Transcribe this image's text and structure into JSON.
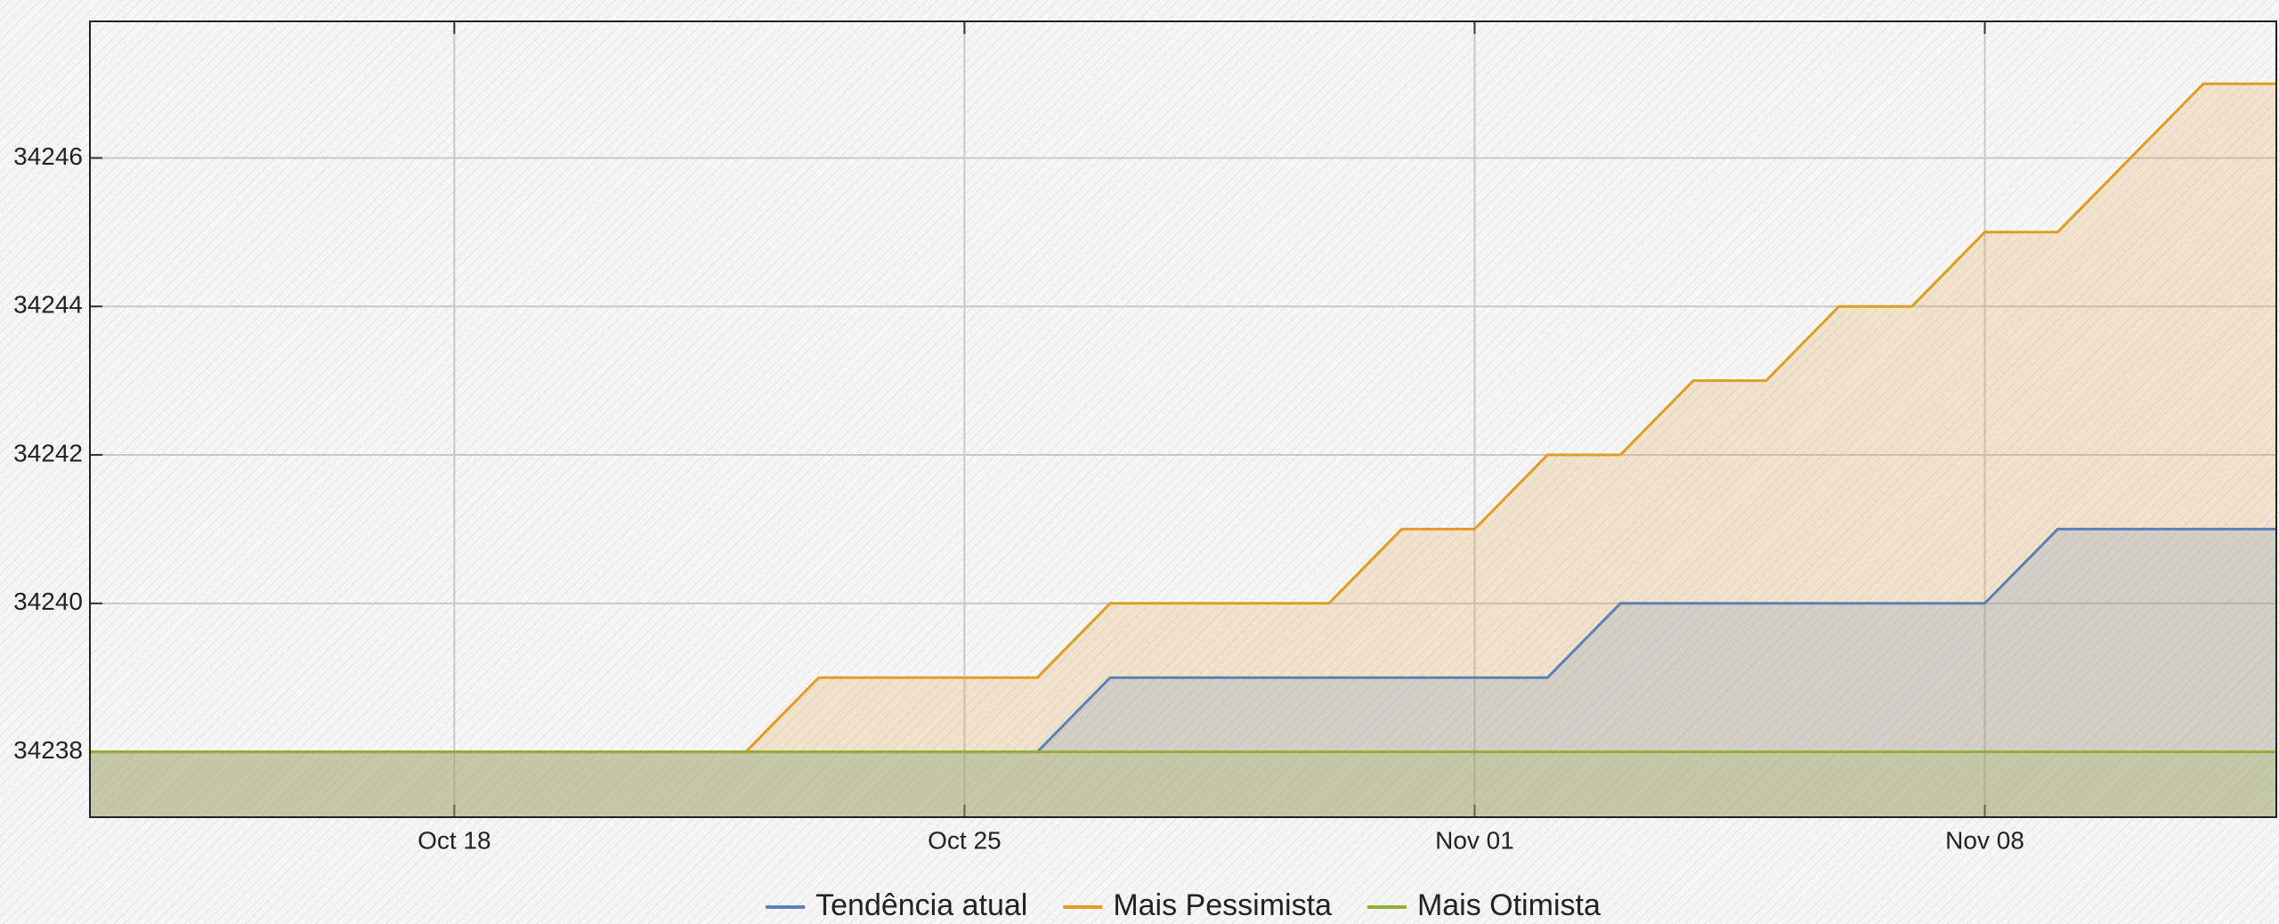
{
  "chart_data": {
    "type": "area",
    "x": [
      "Oct 13",
      "Oct 14",
      "Oct 15",
      "Oct 16",
      "Oct 17",
      "Oct 18",
      "Oct 19",
      "Oct 20",
      "Oct 21",
      "Oct 22",
      "Oct 23",
      "Oct 24",
      "Oct 25",
      "Oct 26",
      "Oct 27",
      "Oct 28",
      "Oct 29",
      "Oct 30",
      "Oct 31",
      "Nov 01",
      "Nov 02",
      "Nov 03",
      "Nov 04",
      "Nov 05",
      "Nov 06",
      "Nov 07",
      "Nov 08",
      "Nov 09",
      "Nov 10",
      "Nov 11",
      "Nov 12"
    ],
    "series": [
      {
        "name": "Tendência atual",
        "color": "#5e81b5",
        "values": [
          34238,
          34238,
          34238,
          34238,
          34238,
          34238,
          34238,
          34238,
          34238,
          34238,
          34238,
          34238,
          34238,
          34238,
          34239,
          34239,
          34239,
          34239,
          34239,
          34239,
          34239,
          34240,
          34240,
          34240,
          34240,
          34240,
          34240,
          34241,
          34241,
          34241,
          34241
        ]
      },
      {
        "name": "Mais Pessimista",
        "color": "#e19c24",
        "values": [
          34238,
          34238,
          34238,
          34238,
          34238,
          34238,
          34238,
          34238,
          34238,
          34238,
          34239,
          34239,
          34239,
          34239,
          34240,
          34240,
          34240,
          34240,
          34241,
          34241,
          34242,
          34242,
          34243,
          34243,
          34244,
          34244,
          34245,
          34245,
          34246,
          34247,
          34247
        ]
      },
      {
        "name": "Mais Otimista",
        "color": "#8fb032",
        "values": [
          34238,
          34238,
          34238,
          34238,
          34238,
          34238,
          34238,
          34238,
          34238,
          34238,
          34238,
          34238,
          34238,
          34238,
          34238,
          34238,
          34238,
          34238,
          34238,
          34238,
          34238,
          34238,
          34238,
          34238,
          34238,
          34238,
          34238,
          34238,
          34238,
          34238,
          34238
        ]
      }
    ],
    "xticks": [
      "Oct 18",
      "Oct 25",
      "Nov 01",
      "Nov 08"
    ],
    "ylim": [
      34237.12,
      34247.84
    ],
    "yticks": [
      34238,
      34240,
      34242,
      34244,
      34246
    ],
    "grid": true,
    "legend": "bottom"
  }
}
